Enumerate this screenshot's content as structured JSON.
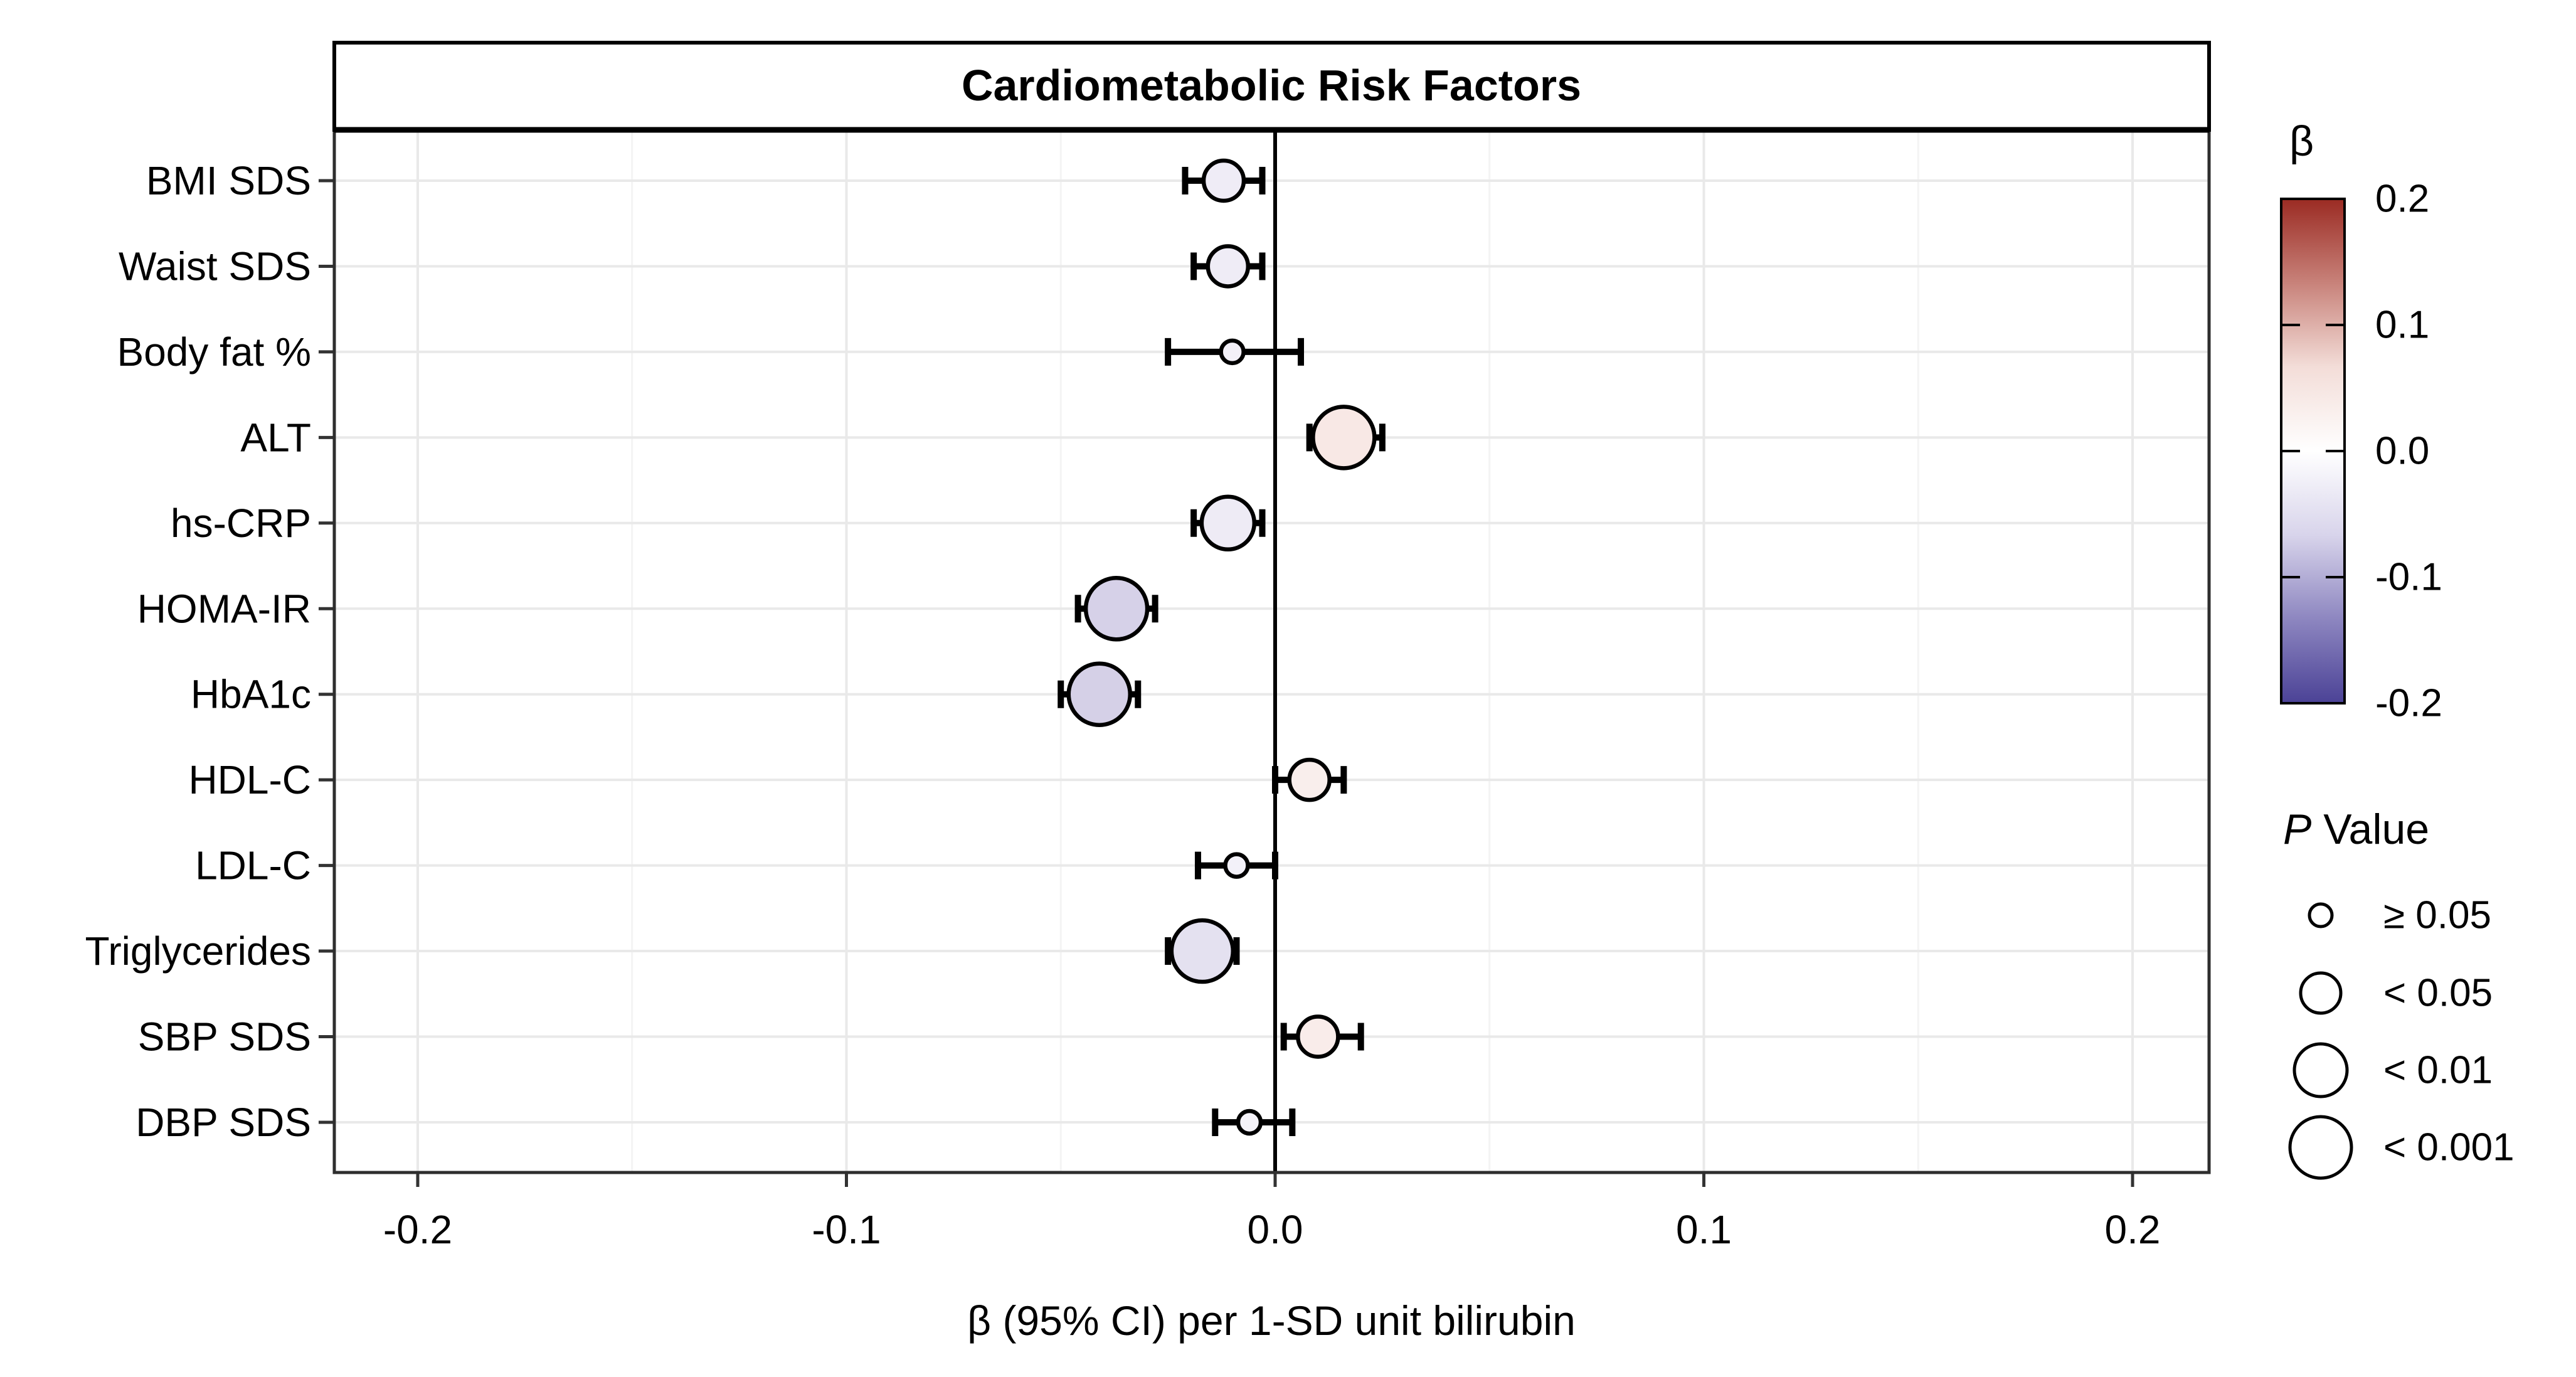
{
  "chart_data": {
    "type": "scatter",
    "subtype": "forest-bubble",
    "title": "Cardiometabolic Risk Factors",
    "xlabel": "β (95% CI) per 1-SD unit bilirubin",
    "xlim": [
      -0.22,
      0.218
    ],
    "x_ticks": [
      {
        "value": -0.2,
        "label": "-0.2"
      },
      {
        "value": -0.1,
        "label": "-0.1"
      },
      {
        "value": 0.0,
        "label": "0.0"
      },
      {
        "value": 0.1,
        "label": "0.1"
      },
      {
        "value": 0.2,
        "label": "0.2"
      }
    ],
    "x_minor_gridlines": [
      -0.15,
      -0.05,
      0.05,
      0.15
    ],
    "zero_reference_line": 0.0,
    "categories": [
      "BMI SDS",
      "Waist SDS",
      "Body fat %",
      "ALT",
      "hs-CRP",
      "HOMA-IR",
      "HbA1c",
      "HDL-C",
      "LDL-C",
      "Triglycerides",
      "SBP SDS",
      "DBP SDS"
    ],
    "points": [
      {
        "label": "BMI SDS",
        "beta": -0.012,
        "ci_low": -0.021,
        "ci_high": -0.003,
        "p_class": "lt005",
        "p_label": "< 0.05",
        "fill": "#EFECF6"
      },
      {
        "label": "Waist SDS",
        "beta": -0.011,
        "ci_low": -0.019,
        "ci_high": -0.003,
        "p_class": "lt005",
        "p_label": "< 0.05",
        "fill": "#EFECF6"
      },
      {
        "label": "Body fat %",
        "beta": -0.01,
        "ci_low": -0.025,
        "ci_high": 0.006,
        "p_class": "ge005",
        "p_label": "≥ 0.05",
        "fill": "#F3F0F8"
      },
      {
        "label": "ALT",
        "beta": 0.016,
        "ci_low": 0.008,
        "ci_high": 0.025,
        "p_class": "lt0001",
        "p_label": "< 0.001",
        "fill": "#F8E8E5"
      },
      {
        "label": "hs-CRP",
        "beta": -0.011,
        "ci_low": -0.019,
        "ci_high": -0.003,
        "p_class": "lt001",
        "p_label": "< 0.01",
        "fill": "#EEEBF5"
      },
      {
        "label": "HOMA-IR",
        "beta": -0.037,
        "ci_low": -0.046,
        "ci_high": -0.028,
        "p_class": "lt0001",
        "p_label": "< 0.001",
        "fill": "#D6D1E8"
      },
      {
        "label": "HbA1c",
        "beta": -0.041,
        "ci_low": -0.05,
        "ci_high": -0.032,
        "p_class": "lt0001",
        "p_label": "< 0.001",
        "fill": "#D5D0E7"
      },
      {
        "label": "HDL-C",
        "beta": 0.008,
        "ci_low": 0.0,
        "ci_high": 0.016,
        "p_class": "lt005",
        "p_label": "< 0.05",
        "fill": "#F9EEEC"
      },
      {
        "label": "LDL-C",
        "beta": -0.009,
        "ci_low": -0.018,
        "ci_high": 0.0,
        "p_class": "ge005",
        "p_label": "≥ 0.05",
        "fill": "#F3F1F9"
      },
      {
        "label": "Triglycerides",
        "beta": -0.017,
        "ci_low": -0.025,
        "ci_high": -0.009,
        "p_class": "lt0001",
        "p_label": "< 0.001",
        "fill": "#E4E1F0"
      },
      {
        "label": "SBP SDS",
        "beta": 0.01,
        "ci_low": 0.002,
        "ci_high": 0.02,
        "p_class": "lt005",
        "p_label": "< 0.05",
        "fill": "#F9ECEA"
      },
      {
        "label": "DBP SDS",
        "beta": -0.006,
        "ci_low": -0.014,
        "ci_high": 0.004,
        "p_class": "ge005",
        "p_label": "≥ 0.05",
        "fill": "#F4F2F8"
      }
    ],
    "color_legend": {
      "title": "β",
      "tick_labels": [
        "0.2",
        "0.1",
        "0.0",
        "-0.1",
        "-0.2"
      ],
      "gradient_top_to_bottom": [
        "#9B2B23",
        "#C8827A",
        "#F3DDD8",
        "#FFFFFF",
        "#D8D4EB",
        "#8D86C0",
        "#4B4296"
      ]
    },
    "size_legend": {
      "title_prefix": "P",
      "title_rest": " Value",
      "items": [
        {
          "id": "ge005",
          "label": "≥ 0.05"
        },
        {
          "id": "lt005",
          "label": "< 0.05"
        },
        {
          "id": "lt001",
          "label": "< 0.01"
        },
        {
          "id": "lt0001",
          "label": "< 0.001"
        }
      ]
    },
    "legend_position": "right",
    "grid": "on",
    "background": "#FFFFFF"
  }
}
